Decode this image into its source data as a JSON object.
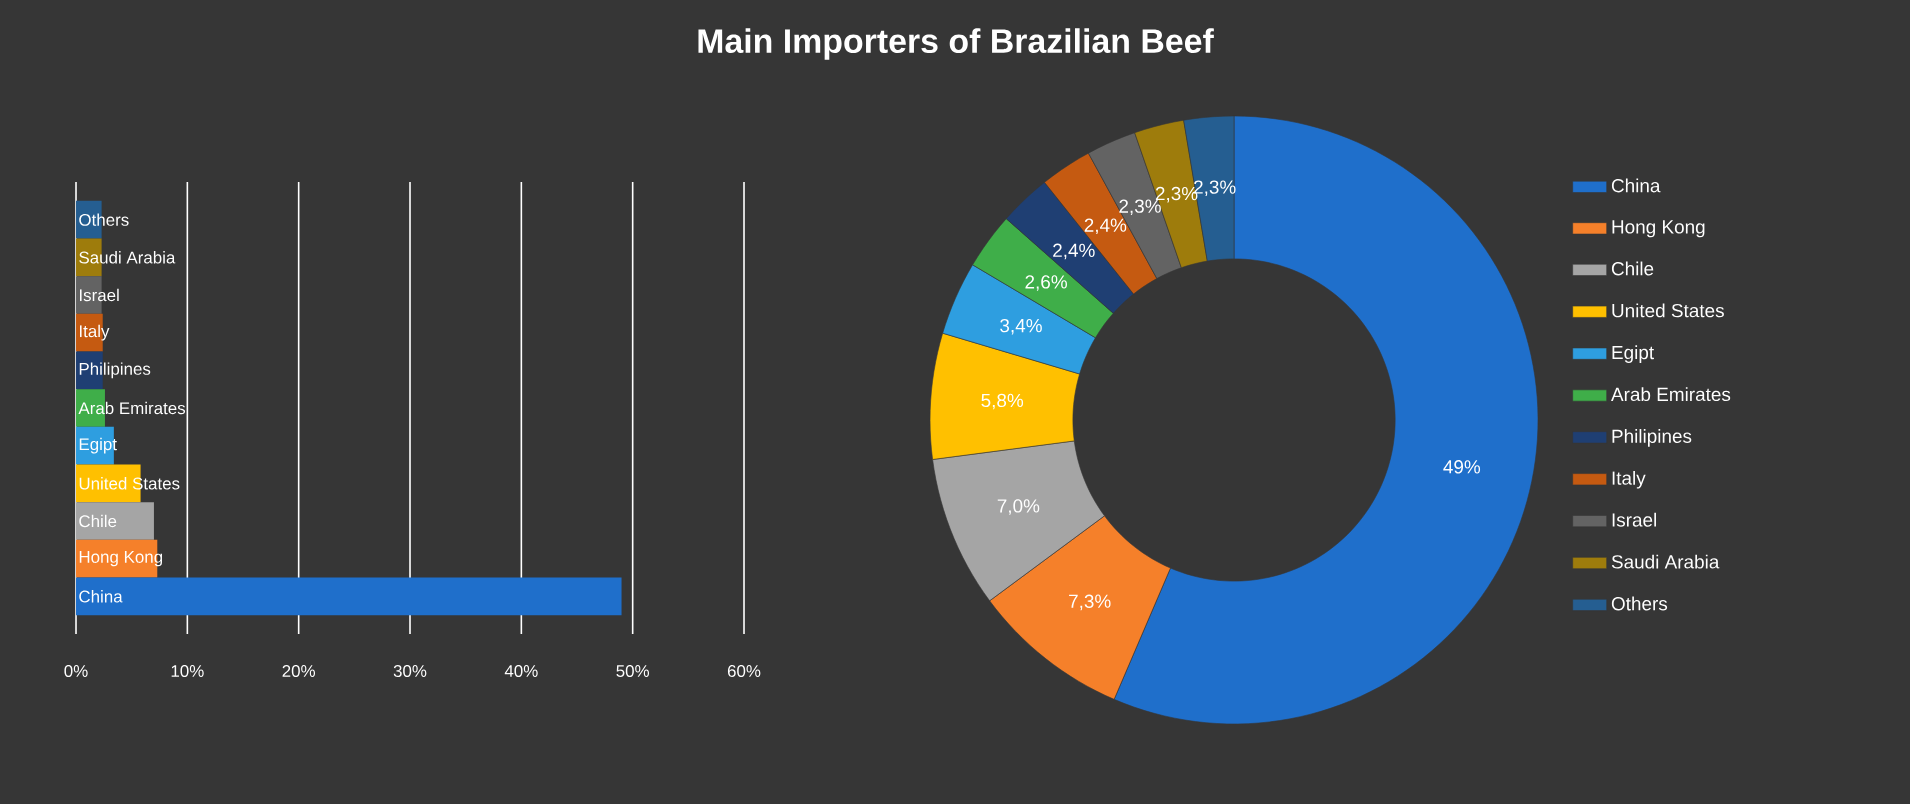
{
  "chart_data": [
    {
      "type": "bar",
      "orientation": "horizontal",
      "categories": [
        "Others",
        "Saudi Arabia",
        "Israel",
        "Italy",
        "Philipines",
        "Arab Emirates",
        "Egipt",
        "United States",
        "Chile",
        "Hong Kong",
        "China"
      ],
      "values": [
        2.3,
        2.3,
        2.3,
        2.4,
        2.4,
        2.6,
        3.4,
        5.8,
        7.0,
        7.3,
        49
      ],
      "colors": [
        "#255e91",
        "#9e7c0c",
        "#636363",
        "#c55a11",
        "#1f3f73",
        "#3fae49",
        "#2e9ee0",
        "#ffc000",
        "#a5a5a5",
        "#f5802a",
        "#1f6fcb"
      ],
      "xlim": [
        0,
        60
      ],
      "xticks": [
        {
          "value": 0,
          "label": "0%"
        },
        {
          "value": 10,
          "label": "10%"
        },
        {
          "value": 20,
          "label": "20%"
        },
        {
          "value": 30,
          "label": "30%"
        },
        {
          "value": 40,
          "label": "40%"
        },
        {
          "value": 50,
          "label": "50%"
        },
        {
          "value": 60,
          "label": "60%"
        }
      ],
      "grid": "x"
    },
    {
      "type": "donut",
      "title": "Main Importers of Brazilian Beef",
      "categories": [
        "China",
        "Hong Kong",
        "Chile",
        "United States",
        "Egipt",
        "Arab Emirates",
        "Philipines",
        "Italy",
        "Israel",
        "Saudi Arabia",
        "Others"
      ],
      "values": [
        49,
        7.3,
        7.0,
        5.8,
        3.4,
        2.6,
        2.4,
        2.4,
        2.3,
        2.3,
        2.3
      ],
      "value_labels": [
        "49%",
        "7,3%",
        "7,0%",
        "5,8%",
        "3,4%",
        "2,6%",
        "2,4%",
        "2,4%",
        "2,3%",
        "2,3%",
        "2,3%"
      ],
      "colors": [
        "#1f6fcb",
        "#f5802a",
        "#a5a5a5",
        "#ffc000",
        "#2e9ee0",
        "#3fae49",
        "#1f3f73",
        "#c55a11",
        "#636363",
        "#9e7c0c",
        "#255e91"
      ],
      "legend": "right"
    }
  ]
}
